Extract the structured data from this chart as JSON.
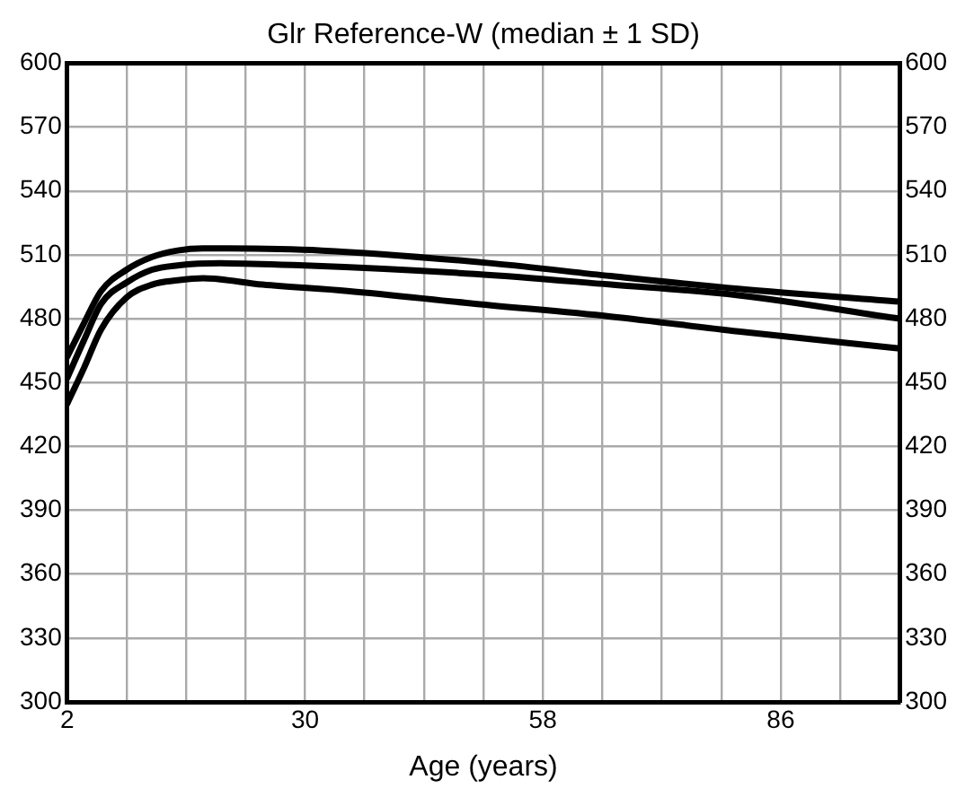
{
  "chart_data": {
    "type": "line",
    "title": "Glr Reference-W (median ± 1 SD)",
    "xlabel": "Age (years)",
    "series": [
      {
        "color": "#000000",
        "x": [
          2,
          4,
          6,
          9,
          12,
          15,
          18,
          32,
          52,
          66,
          81,
          100
        ],
        "values": [
          462,
          478,
          493,
          503,
          509,
          512,
          513,
          512,
          506,
          500,
          494,
          488
        ]
      },
      {
        "color": "#000000",
        "x": [
          2,
          4,
          6,
          9,
          12,
          15,
          20,
          30,
          50,
          66,
          81,
          100
        ],
        "values": [
          452,
          470,
          487,
          497,
          503,
          505,
          506,
          505,
          501,
          496,
          491,
          480
        ]
      },
      {
        "color": "#000000",
        "x": [
          2,
          4,
          6,
          9,
          12,
          15,
          18,
          25,
          35,
          50,
          66,
          81,
          100
        ],
        "values": [
          440,
          457,
          475,
          490,
          496,
          498,
          499,
          496,
          493,
          487,
          481,
          474,
          466
        ]
      }
    ],
    "xlim": [
      2,
      100
    ],
    "xticks": [
      2,
      {
        "value": 9,
        "label": null
      },
      {
        "value": 16,
        "label": null
      },
      {
        "value": 23,
        "label": null
      },
      30,
      {
        "value": 37,
        "label": null
      },
      {
        "value": 44,
        "label": null
      },
      {
        "value": 51,
        "label": null
      },
      58,
      {
        "value": 65,
        "label": null
      },
      {
        "value": 72,
        "label": null
      },
      {
        "value": 79,
        "label": null
      },
      86,
      {
        "value": 93,
        "label": null
      },
      {
        "value": 100,
        "label": null
      }
    ],
    "ylim": [
      300,
      600
    ],
    "yticks": [
      300,
      330,
      360,
      390,
      420,
      450,
      480,
      510,
      540,
      570,
      600
    ],
    "y2lim": [
      300,
      600
    ],
    "y2ticks": [
      300,
      330,
      360,
      390,
      420,
      450,
      480,
      510,
      540,
      570,
      600
    ],
    "grid": true,
    "legend": false,
    "marker": "none",
    "line_style": "solid"
  }
}
